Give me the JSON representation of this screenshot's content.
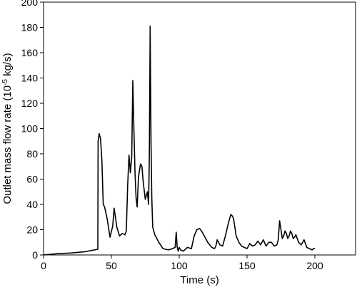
{
  "chart_data": {
    "type": "line",
    "title": "",
    "xlabel": "Time (s)",
    "ylabel_prefix": "Outlet mass flow rate (10",
    "ylabel_exponent": "-5",
    "ylabel_suffix": " kg/s)",
    "xlim": [
      0,
      230
    ],
    "ylim": [
      0,
      200
    ],
    "xticks": [
      0,
      50,
      100,
      150,
      200
    ],
    "yticks": [
      0,
      20,
      40,
      60,
      80,
      100,
      120,
      140,
      160,
      180,
      200
    ],
    "grid": false,
    "line_color": "#000000",
    "series": [
      {
        "x": [
          0,
          10,
          20,
          30,
          35,
          40,
          40.2,
          41,
          42,
          43,
          44,
          45,
          47,
          49,
          51,
          52,
          54,
          56,
          58,
          60,
          61,
          62,
          63,
          64,
          65,
          65.8,
          66.6,
          67.4,
          68.2,
          69,
          70,
          71.5,
          72.5,
          73.5,
          75,
          76.5,
          77.4,
          78,
          78.6,
          79.2,
          79.8,
          80.5,
          82,
          85,
          88,
          92,
          95,
          97,
          97.8,
          98.5,
          99.3,
          100,
          101,
          103,
          106,
          109,
          111,
          113,
          115,
          117,
          119,
          121,
          124,
          126,
          127,
          128,
          130,
          132,
          134,
          136,
          138,
          139,
          140,
          141,
          142,
          144,
          146,
          148,
          150,
          152,
          154,
          156,
          158,
          160,
          162,
          164,
          166,
          168,
          170,
          172,
          173,
          174,
          175,
          176,
          177,
          178,
          179,
          180,
          181,
          182,
          183,
          184,
          185,
          186,
          188,
          190,
          191,
          192,
          193,
          194,
          196,
          198,
          199,
          200
        ],
        "y": [
          0,
          1,
          1.5,
          2.5,
          3.5,
          4.5,
          90,
          96,
          92,
          75,
          40,
          38,
          28,
          14,
          23,
          37,
          22,
          15,
          17,
          16,
          19,
          55,
          79,
          65,
          78,
          138,
          100,
          65,
          45,
          38,
          62,
          72,
          70,
          57,
          44,
          50,
          40,
          80,
          181,
          90,
          45,
          22,
          16,
          10,
          5,
          4,
          5,
          6,
          18,
          6,
          3,
          6,
          4,
          3,
          6,
          5,
          15,
          20,
          21,
          18,
          14,
          10,
          6,
          5,
          7,
          12,
          8,
          7,
          15,
          24,
          32,
          31,
          29,
          22,
          15,
          10,
          7,
          6,
          5,
          9,
          7,
          8,
          11,
          8,
          12,
          7,
          10,
          10,
          7,
          8,
          12,
          27,
          20,
          13,
          15,
          19,
          17,
          13,
          15,
          19,
          17,
          13,
          14,
          16,
          10,
          8,
          10,
          12,
          9,
          6,
          5,
          4,
          5,
          5
        ]
      }
    ]
  }
}
